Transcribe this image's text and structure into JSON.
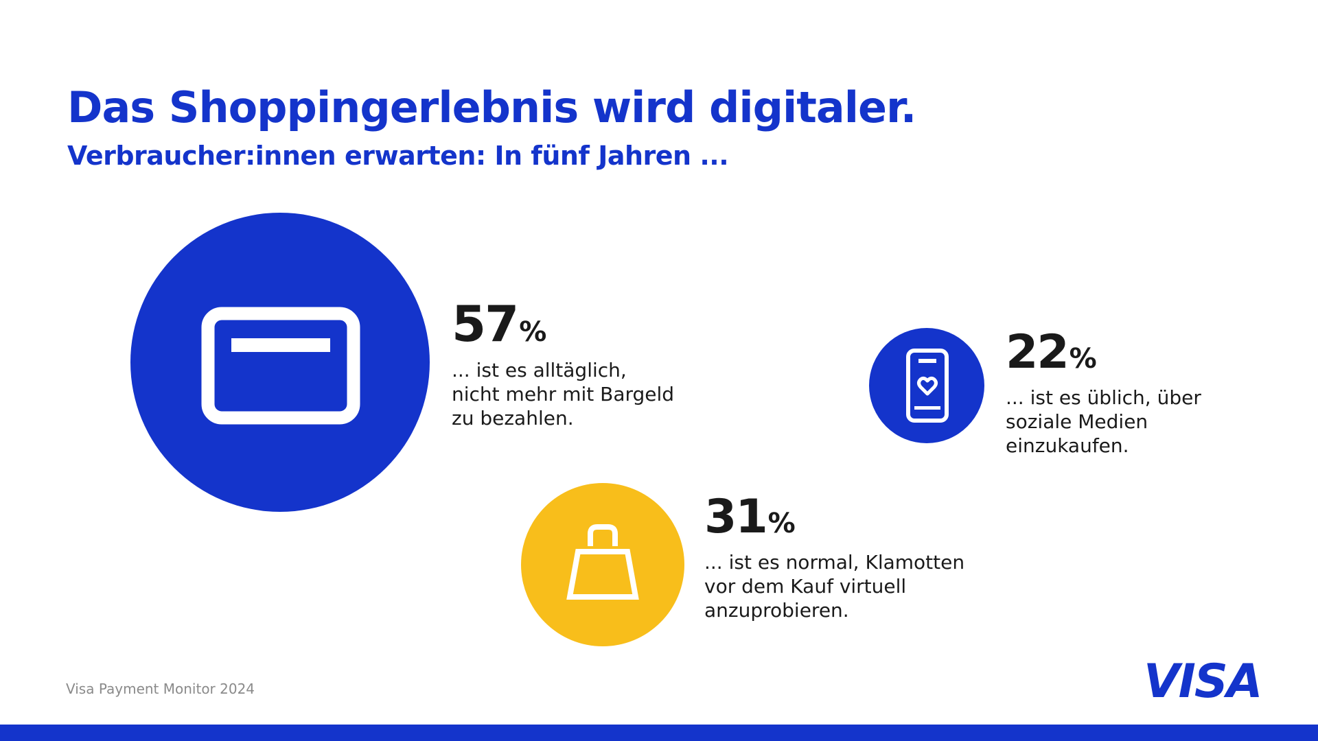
{
  "colors": {
    "brand_blue": "#1434CB",
    "accent_yellow": "#F8BE1B",
    "icon_white": "#FFFFFF"
  },
  "header": {
    "title": "Das Shoppingerlebnis wird digitaler.",
    "subtitle": "Verbraucher:innen erwarten: In fünf Jahren ..."
  },
  "chart_data": {
    "type": "bubble",
    "unit": "%",
    "items": [
      {
        "value": 57,
        "value_label": "57",
        "unit": "%",
        "description": "... ist es alltäglich, nicht mehr mit Bargeld zu bezahlen.",
        "icon": "credit-card-icon",
        "color": "#1434CB"
      },
      {
        "value": 31,
        "value_label": "31",
        "unit": "%",
        "description": "... ist es normal, Klamotten vor dem Kauf virtuell anzuprobieren.",
        "icon": "shopping-bag-icon",
        "color": "#F8BE1B"
      },
      {
        "value": 22,
        "value_label": "22",
        "unit": "%",
        "description": "... ist es üblich, über soziale Medien einzukaufen.",
        "icon": "smartphone-heart-icon",
        "color": "#1434CB"
      }
    ]
  },
  "footer": {
    "source": "Visa Payment Monitor 2024",
    "logo_text": "VISA"
  }
}
